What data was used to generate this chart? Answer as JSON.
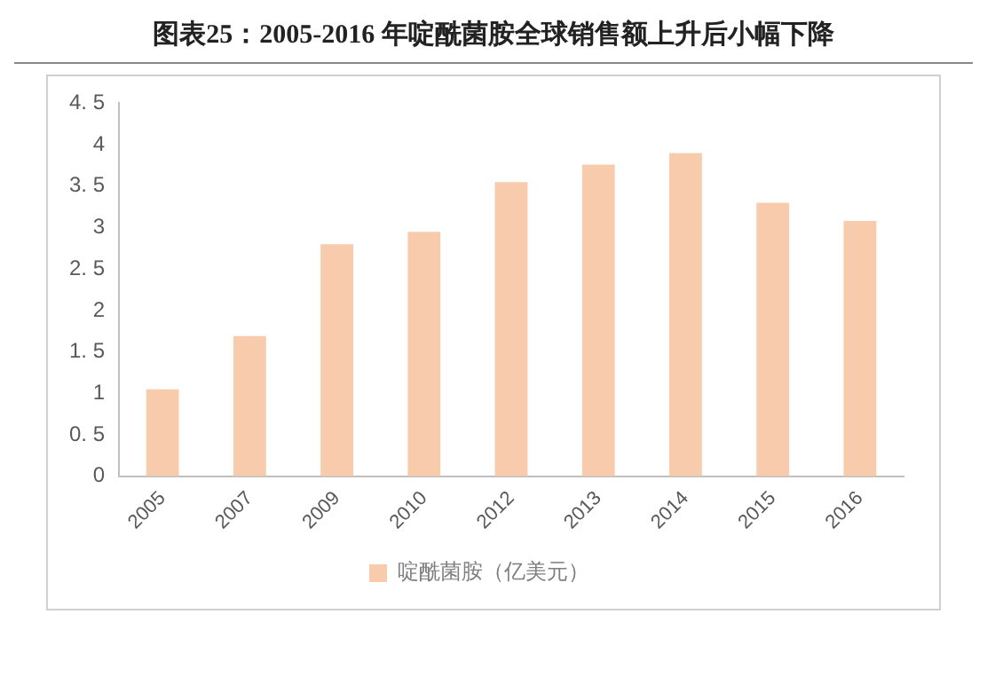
{
  "chart_data": {
    "type": "bar",
    "title": "图表25：2005-2016 年啶酰菌胺全球销售额上升后小幅下降",
    "categories": [
      "2005",
      "2007",
      "2009",
      "2010",
      "2012",
      "2013",
      "2014",
      "2015",
      "2016"
    ],
    "series": [
      {
        "name": "啶酰菌胺（亿美元）",
        "color": "#f8cbad",
        "values": [
          1.05,
          1.69,
          2.8,
          2.95,
          3.55,
          3.76,
          3.9,
          3.3,
          3.08
        ]
      }
    ],
    "ylim": [
      0,
      4.5
    ],
    "yticks": [
      0,
      {
        "value": 0.5,
        "label": "0. 5"
      },
      1,
      {
        "value": 1.5,
        "label": "1. 5"
      },
      2,
      {
        "value": 2.5,
        "label": "2. 5"
      },
      3,
      {
        "value": 3.5,
        "label": "3. 5"
      },
      4,
      {
        "value": 4.5,
        "label": "4. 5"
      }
    ],
    "grid": false,
    "legend": "bottom"
  }
}
